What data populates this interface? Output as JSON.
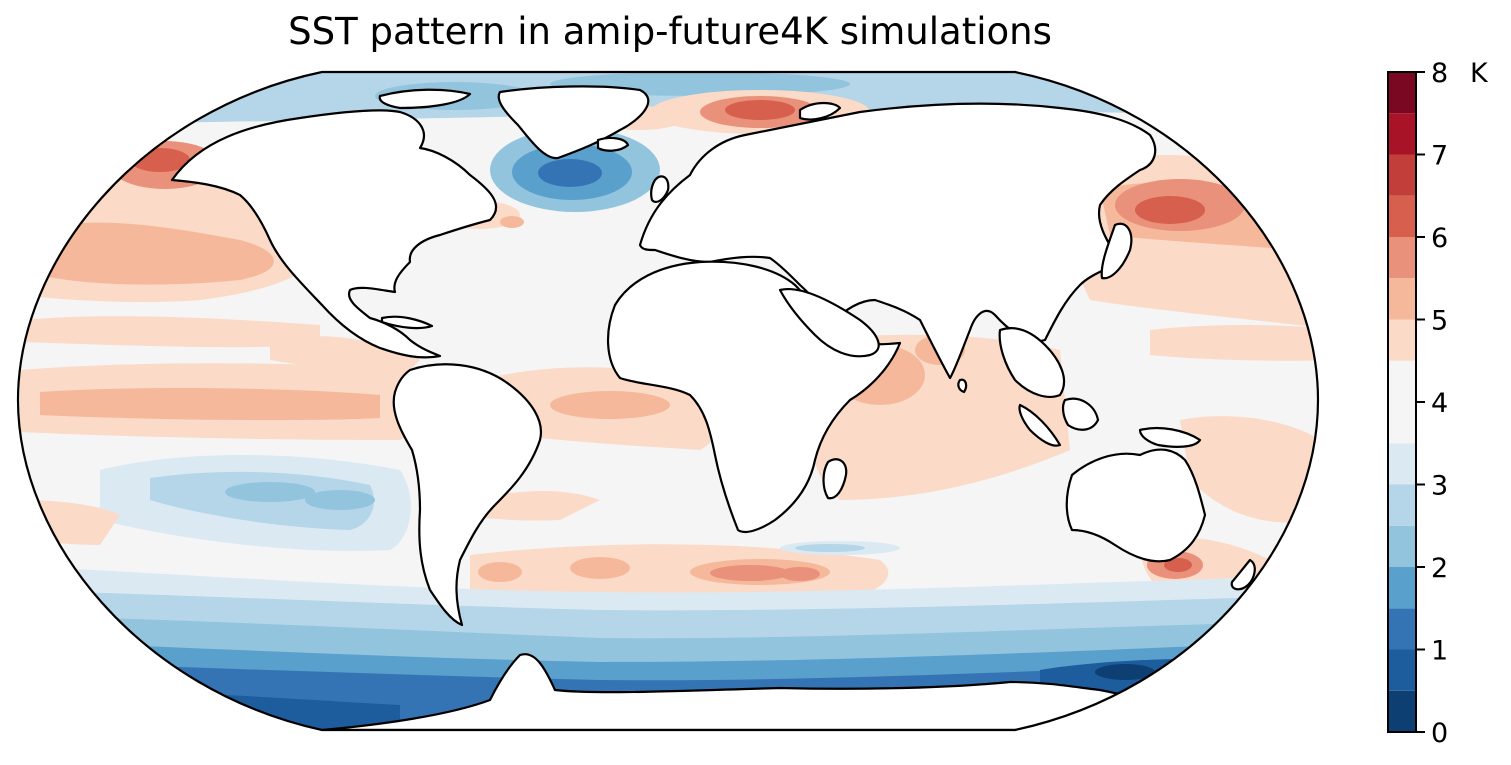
{
  "title": "SST pattern in amip-future4K simulations",
  "colorbar": {
    "unit": "K",
    "tick_labels": [
      "0",
      "1",
      "2",
      "3",
      "4",
      "5",
      "6",
      "7",
      "8"
    ],
    "levels": [
      {
        "lo": 0.0,
        "hi": 0.5,
        "color": "#0d3f73"
      },
      {
        "lo": 0.5,
        "hi": 1.0,
        "color": "#1d5d9e"
      },
      {
        "lo": 1.0,
        "hi": 1.5,
        "color": "#3574b4"
      },
      {
        "lo": 1.5,
        "hi": 2.0,
        "color": "#5aa0cd"
      },
      {
        "lo": 2.0,
        "hi": 2.5,
        "color": "#93c4de"
      },
      {
        "lo": 2.5,
        "hi": 3.0,
        "color": "#b4d6e8"
      },
      {
        "lo": 3.0,
        "hi": 3.5,
        "color": "#dbe9f3"
      },
      {
        "lo": 3.5,
        "hi": 4.0,
        "color": "#f5f5f5"
      },
      {
        "lo": 4.0,
        "hi": 4.5,
        "color": "#f5f5f5"
      },
      {
        "lo": 4.5,
        "hi": 5.0,
        "color": "#fbdac8"
      },
      {
        "lo": 5.0,
        "hi": 5.5,
        "color": "#f5b89b"
      },
      {
        "lo": 5.5,
        "hi": 6.0,
        "color": "#e9917a"
      },
      {
        "lo": 6.0,
        "hi": 6.5,
        "color": "#d6604d"
      },
      {
        "lo": 6.5,
        "hi": 7.0,
        "color": "#c13e3b"
      },
      {
        "lo": 7.0,
        "hi": 7.5,
        "color": "#a81328"
      },
      {
        "lo": 7.5,
        "hi": 8.0,
        "color": "#7a0822"
      }
    ]
  }
}
